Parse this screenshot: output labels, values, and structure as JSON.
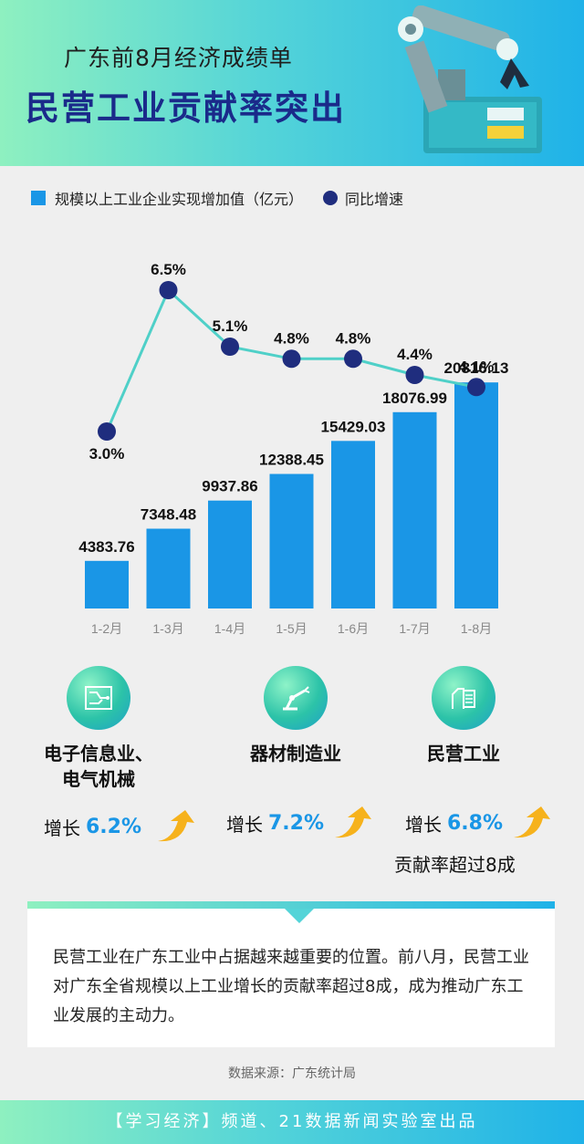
{
  "header": {
    "subtitle": "广东前8月经济成绩单",
    "title": "民营工业贡献率突出"
  },
  "legend": {
    "bar_label": "规模以上工业企业实现增加值（亿元）",
    "line_label": "同比增速"
  },
  "colors": {
    "bar": "#1a96e6",
    "line": "#4fd0c8",
    "dot": "#1f2d7e",
    "accent": "#1a96e6"
  },
  "chart_data": {
    "type": "bar",
    "categories": [
      "1-2月",
      "1-3月",
      "1-4月",
      "1-5月",
      "1-6月",
      "1-7月",
      "1-8月"
    ],
    "series": [
      {
        "name": "规模以上工业企业实现增加值（亿元）",
        "type": "bar",
        "values": [
          4383.76,
          7348.48,
          9937.86,
          12388.45,
          15429.03,
          18076.99,
          20816.13
        ],
        "labels": [
          "4383.76",
          "7348.48",
          "9937.86",
          "12388.45",
          "15429.03",
          "18076.99",
          "20816.13"
        ]
      },
      {
        "name": "同比增速",
        "type": "line",
        "values": [
          3.0,
          6.5,
          5.1,
          4.8,
          4.8,
          4.4,
          4.1
        ],
        "labels": [
          "3.0%",
          "6.5%",
          "5.1%",
          "4.8%",
          "4.8%",
          "4.4%",
          "4.1%"
        ]
      }
    ]
  },
  "sectors": [
    {
      "name_line1": "电子信息业、",
      "name_line2": "电气机械",
      "growth_label": "增长",
      "growth_value": "6.2%",
      "icon": "circuit-board-icon"
    },
    {
      "name_line1": "器材制造业",
      "name_line2": "",
      "growth_label": "增长",
      "growth_value": "7.2%",
      "icon": "robot-arm-icon"
    },
    {
      "name_line1": "民营工业",
      "name_line2": "",
      "growth_label": "增长",
      "growth_value": "6.8%",
      "icon": "factory-icon"
    }
  ],
  "sector_note": "贡献率超过8成",
  "summary": "民营工业在广东工业中占据越来越重要的位置。前八月，民营工业对广东全省规模以上工业增长的贡献率超过8成，成为推动广东工业发展的主动力。",
  "source": "数据来源：广东统计局",
  "footer": "【学习经济】频道、21数据新闻实验室出品"
}
